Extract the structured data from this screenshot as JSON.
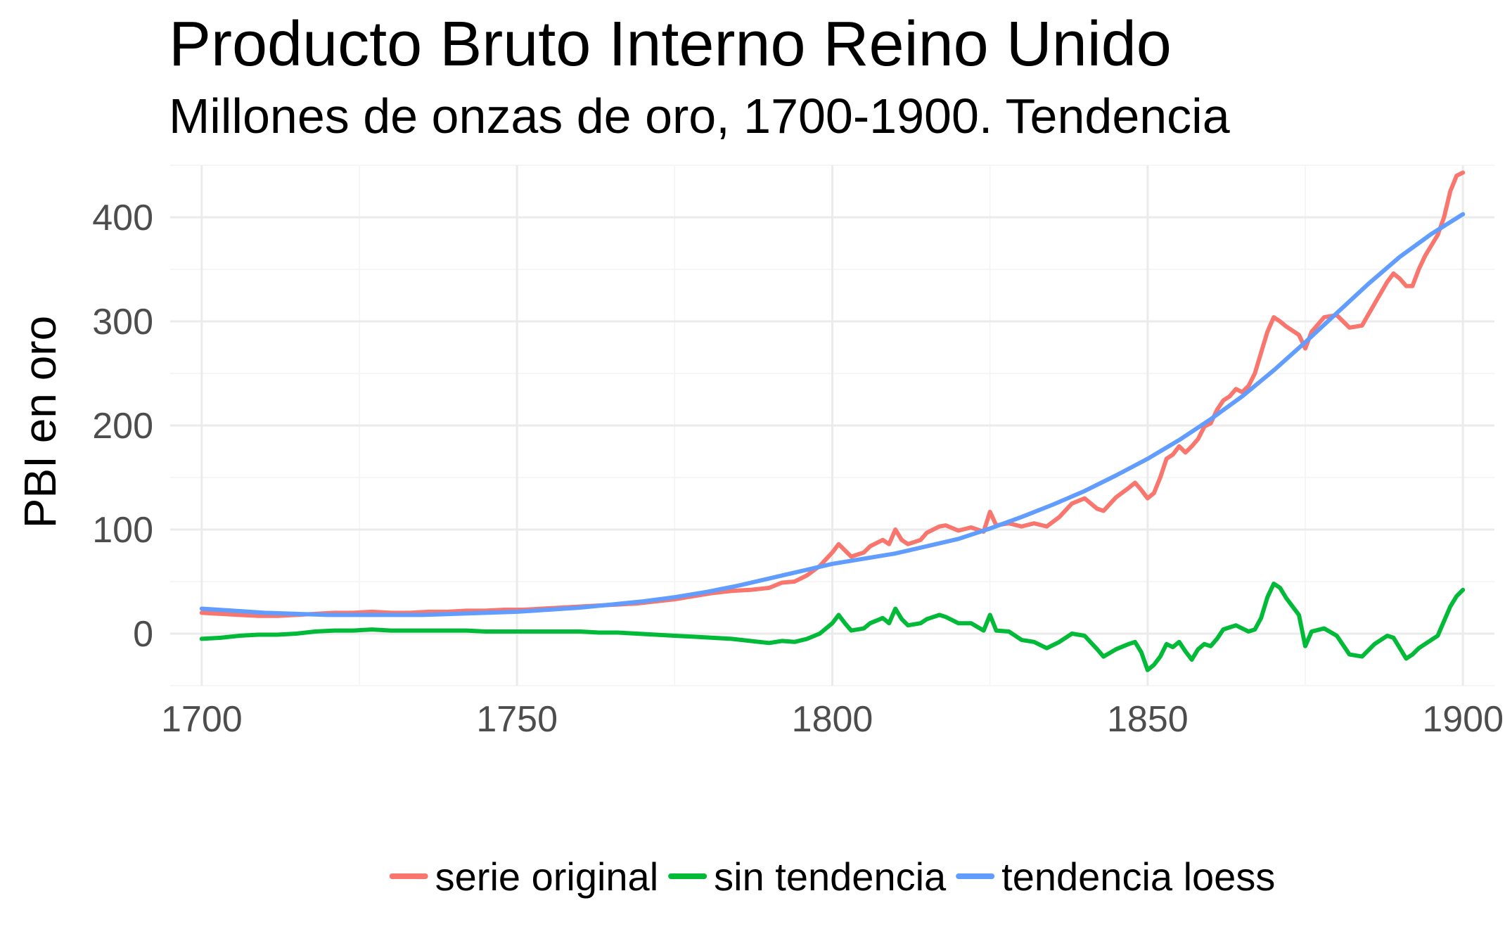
{
  "chart_data": {
    "type": "line",
    "title": "Producto Bruto Interno Reino Unido",
    "subtitle": "Millones de onzas de oro, 1700-1900. Tendencia",
    "xlabel": "",
    "ylabel": "PBI en oro",
    "xlim": [
      1695,
      1905
    ],
    "ylim": [
      -50,
      450
    ],
    "x_ticks": [
      1700,
      1750,
      1800,
      1850,
      1900
    ],
    "y_ticks": [
      0,
      100,
      200,
      300,
      400
    ],
    "grid": true,
    "legend_position": "bottom",
    "series": [
      {
        "name": "serie original",
        "color": "#F8766D",
        "points": [
          [
            1700,
            20
          ],
          [
            1703,
            19
          ],
          [
            1706,
            18
          ],
          [
            1709,
            17
          ],
          [
            1712,
            17
          ],
          [
            1715,
            18
          ],
          [
            1718,
            19
          ],
          [
            1721,
            20
          ],
          [
            1724,
            20
          ],
          [
            1727,
            21
          ],
          [
            1730,
            20
          ],
          [
            1733,
            20
          ],
          [
            1736,
            21
          ],
          [
            1739,
            21
          ],
          [
            1742,
            22
          ],
          [
            1745,
            22
          ],
          [
            1748,
            23
          ],
          [
            1751,
            23
          ],
          [
            1754,
            24
          ],
          [
            1757,
            25
          ],
          [
            1760,
            26
          ],
          [
            1763,
            27
          ],
          [
            1766,
            28
          ],
          [
            1769,
            29
          ],
          [
            1772,
            31
          ],
          [
            1775,
            33
          ],
          [
            1778,
            36
          ],
          [
            1781,
            39
          ],
          [
            1784,
            41
          ],
          [
            1787,
            42
          ],
          [
            1790,
            44
          ],
          [
            1792,
            49
          ],
          [
            1794,
            50
          ],
          [
            1796,
            56
          ],
          [
            1798,
            65
          ],
          [
            1800,
            78
          ],
          [
            1801,
            86
          ],
          [
            1802,
            80
          ],
          [
            1803,
            74
          ],
          [
            1805,
            78
          ],
          [
            1806,
            84
          ],
          [
            1808,
            90
          ],
          [
            1809,
            86
          ],
          [
            1810,
            100
          ],
          [
            1811,
            90
          ],
          [
            1812,
            86
          ],
          [
            1814,
            90
          ],
          [
            1815,
            97
          ],
          [
            1817,
            103
          ],
          [
            1818,
            104
          ],
          [
            1820,
            99
          ],
          [
            1822,
            102
          ],
          [
            1824,
            98
          ],
          [
            1825,
            117
          ],
          [
            1826,
            104
          ],
          [
            1828,
            106
          ],
          [
            1830,
            103
          ],
          [
            1832,
            106
          ],
          [
            1834,
            103
          ],
          [
            1836,
            112
          ],
          [
            1838,
            125
          ],
          [
            1840,
            130
          ],
          [
            1842,
            120
          ],
          [
            1843,
            118
          ],
          [
            1845,
            131
          ],
          [
            1847,
            140
          ],
          [
            1848,
            145
          ],
          [
            1849,
            138
          ],
          [
            1850,
            130
          ],
          [
            1851,
            135
          ],
          [
            1852,
            150
          ],
          [
            1853,
            168
          ],
          [
            1854,
            172
          ],
          [
            1855,
            180
          ],
          [
            1856,
            174
          ],
          [
            1857,
            180
          ],
          [
            1858,
            187
          ],
          [
            1859,
            199
          ],
          [
            1860,
            202
          ],
          [
            1861,
            215
          ],
          [
            1862,
            224
          ],
          [
            1863,
            228
          ],
          [
            1864,
            235
          ],
          [
            1865,
            232
          ],
          [
            1866,
            238
          ],
          [
            1867,
            250
          ],
          [
            1868,
            270
          ],
          [
            1869,
            290
          ],
          [
            1870,
            304
          ],
          [
            1871,
            300
          ],
          [
            1872,
            295
          ],
          [
            1874,
            287
          ],
          [
            1875,
            274
          ],
          [
            1876,
            290
          ],
          [
            1878,
            304
          ],
          [
            1880,
            306
          ],
          [
            1882,
            294
          ],
          [
            1884,
            296
          ],
          [
            1886,
            317
          ],
          [
            1888,
            338
          ],
          [
            1889,
            346
          ],
          [
            1890,
            341
          ],
          [
            1891,
            334
          ],
          [
            1892,
            334
          ],
          [
            1893,
            350
          ],
          [
            1894,
            363
          ],
          [
            1895,
            373
          ],
          [
            1896,
            383
          ],
          [
            1897,
            400
          ],
          [
            1898,
            425
          ],
          [
            1899,
            440
          ],
          [
            1900,
            443
          ]
        ]
      },
      {
        "name": "sin tendencia",
        "color": "#00BA38",
        "points": [
          [
            1700,
            -5
          ],
          [
            1703,
            -4
          ],
          [
            1706,
            -2
          ],
          [
            1709,
            -1
          ],
          [
            1712,
            -1
          ],
          [
            1715,
            0
          ],
          [
            1718,
            2
          ],
          [
            1721,
            3
          ],
          [
            1724,
            3
          ],
          [
            1727,
            4
          ],
          [
            1730,
            3
          ],
          [
            1733,
            3
          ],
          [
            1736,
            3
          ],
          [
            1739,
            3
          ],
          [
            1742,
            3
          ],
          [
            1745,
            2
          ],
          [
            1748,
            2
          ],
          [
            1751,
            2
          ],
          [
            1754,
            2
          ],
          [
            1757,
            2
          ],
          [
            1760,
            2
          ],
          [
            1763,
            1
          ],
          [
            1766,
            1
          ],
          [
            1769,
            0
          ],
          [
            1772,
            -1
          ],
          [
            1775,
            -2
          ],
          [
            1778,
            -3
          ],
          [
            1781,
            -4
          ],
          [
            1784,
            -5
          ],
          [
            1787,
            -7
          ],
          [
            1790,
            -9
          ],
          [
            1792,
            -7
          ],
          [
            1794,
            -8
          ],
          [
            1796,
            -5
          ],
          [
            1798,
            0
          ],
          [
            1800,
            10
          ],
          [
            1801,
            18
          ],
          [
            1802,
            10
          ],
          [
            1803,
            3
          ],
          [
            1805,
            5
          ],
          [
            1806,
            10
          ],
          [
            1808,
            15
          ],
          [
            1809,
            10
          ],
          [
            1810,
            24
          ],
          [
            1811,
            14
          ],
          [
            1812,
            8
          ],
          [
            1814,
            10
          ],
          [
            1815,
            14
          ],
          [
            1817,
            18
          ],
          [
            1818,
            16
          ],
          [
            1820,
            10
          ],
          [
            1822,
            10
          ],
          [
            1824,
            3
          ],
          [
            1825,
            18
          ],
          [
            1826,
            3
          ],
          [
            1828,
            2
          ],
          [
            1830,
            -6
          ],
          [
            1832,
            -8
          ],
          [
            1834,
            -14
          ],
          [
            1836,
            -8
          ],
          [
            1838,
            0
          ],
          [
            1840,
            -2
          ],
          [
            1842,
            -15
          ],
          [
            1843,
            -22
          ],
          [
            1845,
            -15
          ],
          [
            1847,
            -10
          ],
          [
            1848,
            -8
          ],
          [
            1849,
            -18
          ],
          [
            1850,
            -35
          ],
          [
            1851,
            -30
          ],
          [
            1852,
            -22
          ],
          [
            1853,
            -10
          ],
          [
            1854,
            -13
          ],
          [
            1855,
            -8
          ],
          [
            1856,
            -17
          ],
          [
            1857,
            -25
          ],
          [
            1858,
            -15
          ],
          [
            1859,
            -10
          ],
          [
            1860,
            -12
          ],
          [
            1861,
            -5
          ],
          [
            1862,
            4
          ],
          [
            1863,
            6
          ],
          [
            1864,
            8
          ],
          [
            1865,
            5
          ],
          [
            1866,
            2
          ],
          [
            1867,
            4
          ],
          [
            1868,
            15
          ],
          [
            1869,
            35
          ],
          [
            1870,
            48
          ],
          [
            1871,
            44
          ],
          [
            1872,
            34
          ],
          [
            1874,
            18
          ],
          [
            1875,
            -12
          ],
          [
            1876,
            2
          ],
          [
            1878,
            5
          ],
          [
            1880,
            -2
          ],
          [
            1882,
            -20
          ],
          [
            1884,
            -22
          ],
          [
            1886,
            -10
          ],
          [
            1888,
            -2
          ],
          [
            1889,
            -4
          ],
          [
            1890,
            -14
          ],
          [
            1891,
            -24
          ],
          [
            1892,
            -20
          ],
          [
            1893,
            -14
          ],
          [
            1894,
            -10
          ],
          [
            1895,
            -6
          ],
          [
            1896,
            -2
          ],
          [
            1897,
            12
          ],
          [
            1898,
            26
          ],
          [
            1899,
            36
          ],
          [
            1900,
            42
          ]
        ]
      },
      {
        "name": "tendencia loess",
        "color": "#619CFF",
        "points": [
          [
            1700,
            24
          ],
          [
            1705,
            22
          ],
          [
            1710,
            20
          ],
          [
            1715,
            19
          ],
          [
            1720,
            18
          ],
          [
            1725,
            18
          ],
          [
            1730,
            18
          ],
          [
            1735,
            18
          ],
          [
            1740,
            19
          ],
          [
            1745,
            20
          ],
          [
            1750,
            21
          ],
          [
            1755,
            23
          ],
          [
            1760,
            25
          ],
          [
            1765,
            28
          ],
          [
            1770,
            31
          ],
          [
            1775,
            35
          ],
          [
            1780,
            40
          ],
          [
            1785,
            46
          ],
          [
            1790,
            53
          ],
          [
            1795,
            60
          ],
          [
            1800,
            67
          ],
          [
            1805,
            72
          ],
          [
            1810,
            77
          ],
          [
            1815,
            84
          ],
          [
            1820,
            91
          ],
          [
            1825,
            101
          ],
          [
            1830,
            112
          ],
          [
            1835,
            124
          ],
          [
            1840,
            137
          ],
          [
            1845,
            152
          ],
          [
            1850,
            168
          ],
          [
            1855,
            186
          ],
          [
            1860,
            206
          ],
          [
            1865,
            228
          ],
          [
            1870,
            253
          ],
          [
            1875,
            280
          ],
          [
            1880,
            308
          ],
          [
            1885,
            336
          ],
          [
            1890,
            362
          ],
          [
            1895,
            384
          ],
          [
            1900,
            403
          ]
        ]
      }
    ]
  }
}
